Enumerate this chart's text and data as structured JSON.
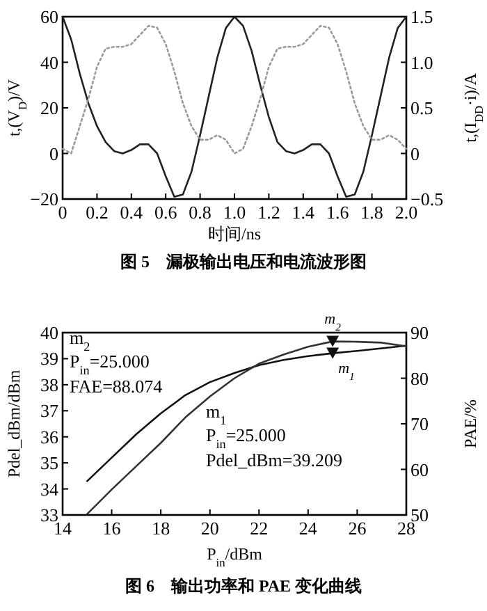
{
  "chart_data": [
    {
      "type": "line",
      "title": "图 5　漏极输出电压和电流波形图",
      "xlabel": "时间/ns",
      "ylabel": "t,(V$_{D}$)/V",
      "y2label": "t,(I$_{DD}$·i)/A",
      "xlim": [
        0,
        2
      ],
      "xticks": [
        0,
        0.2,
        0.4,
        0.6,
        0.8,
        {
          "value": 1,
          "label": "1.0"
        },
        1.2,
        1.4,
        1.6,
        1.8,
        {
          "value": 2,
          "label": "2.0"
        }
      ],
      "ylim": [
        -20,
        60
      ],
      "yticks": [
        -20,
        0,
        20,
        40,
        60
      ],
      "y2lim": [
        -0.5,
        1.5
      ],
      "y2ticks": [
        -0.5,
        0,
        0.5,
        {
          "value": 1,
          "label": "1.0"
        },
        1.5
      ],
      "x": [
        0,
        0.05,
        0.1,
        0.15,
        0.2,
        0.25,
        0.3,
        0.35,
        0.4,
        0.45,
        0.5,
        0.55,
        0.6,
        0.65,
        0.7,
        0.75,
        0.8,
        0.85,
        0.9,
        0.95,
        1,
        1.05,
        1.1,
        1.15,
        1.2,
        1.25,
        1.3,
        1.35,
        1.4,
        1.45,
        1.5,
        1.55,
        1.6,
        1.65,
        1.7,
        1.75,
        1.8,
        1.85,
        1.9,
        1.95,
        2
      ],
      "series": [
        {
          "color": "#222222",
          "line_style": "solid",
          "values": [
            60,
            50,
            35,
            22,
            12,
            5,
            1,
            0,
            1.5,
            4,
            4,
            0,
            -10,
            -19,
            -18,
            -8,
            8,
            25,
            42,
            55,
            60,
            56,
            45,
            30,
            16,
            5,
            1,
            0,
            1.5,
            4,
            4,
            0,
            -10,
            -19,
            -18,
            -8,
            8,
            25,
            42,
            55,
            60
          ]
        },
        {
          "color": "#999999",
          "line_style": "dotted",
          "axis": "y2",
          "values": [
            0.05,
            0,
            0.3,
            0.6,
            0.95,
            1.15,
            1.17,
            1.17,
            1.2,
            1.3,
            1.4,
            1.38,
            1.2,
            0.9,
            0.55,
            0.3,
            0.15,
            0.15,
            0.2,
            0.15,
            0,
            0.05,
            0.3,
            0.6,
            0.95,
            1.15,
            1.17,
            1.17,
            1.2,
            1.3,
            1.4,
            1.38,
            1.2,
            0.9,
            0.55,
            0.3,
            0.15,
            0.15,
            0.2,
            0.15,
            0.05
          ]
        }
      ]
    },
    {
      "type": "line",
      "title": "图 6　输出功率和 PAE 变化曲线",
      "xlabel": "P$_{in}$/dBm",
      "ylabel": "Pdel_dBm/dBm",
      "y2label": "PAE/%",
      "xlim": [
        14,
        28
      ],
      "xticks": [
        14,
        16,
        18,
        20,
        22,
        24,
        26,
        28
      ],
      "ylim": [
        33,
        40
      ],
      "yticks": [
        33,
        34,
        35,
        36,
        37,
        38,
        39,
        40
      ],
      "y2lim": [
        50,
        90
      ],
      "y2ticks": [
        50,
        60,
        70,
        80,
        90
      ],
      "annotations": [
        "m$_{2}$",
        "P$_{in}$=25.000",
        "FAE=88.074",
        "m$_{1}$",
        "P$_{in}$=25.000",
        "Pdel_dBm=39.209"
      ],
      "series": [
        {
          "color": "#111111",
          "line_style": "solid",
          "x": [
            15,
            16,
            17,
            18,
            19,
            20,
            21,
            22,
            23,
            24,
            25,
            26,
            27,
            28
          ],
          "values": [
            34.3,
            35.2,
            36.1,
            36.9,
            37.6,
            38.1,
            38.45,
            38.75,
            38.95,
            39.1,
            39.209,
            39.3,
            39.4,
            39.5
          ]
        },
        {
          "color": "#333333",
          "line_style": "solid",
          "axis": "y2",
          "x": [
            15,
            16,
            17,
            18,
            19,
            20,
            21,
            22,
            23,
            24,
            25,
            26,
            27,
            28
          ],
          "values": [
            50.2,
            55.6,
            60.7,
            65.8,
            71.4,
            76,
            80,
            83.2,
            85.2,
            86.9,
            88.074,
            88,
            87.8,
            87
          ]
        },
        {
          "type": "scatter",
          "name": "m$_{1}$",
          "marker": "triangle",
          "color": "#111111",
          "x": [
            25
          ],
          "values": [
            39.209
          ]
        },
        {
          "type": "scatter",
          "name": "m$_{2}$",
          "marker": "triangle",
          "color": "#111111",
          "axis": "y2",
          "x": [
            25
          ],
          "values": [
            88.074
          ]
        }
      ]
    }
  ]
}
